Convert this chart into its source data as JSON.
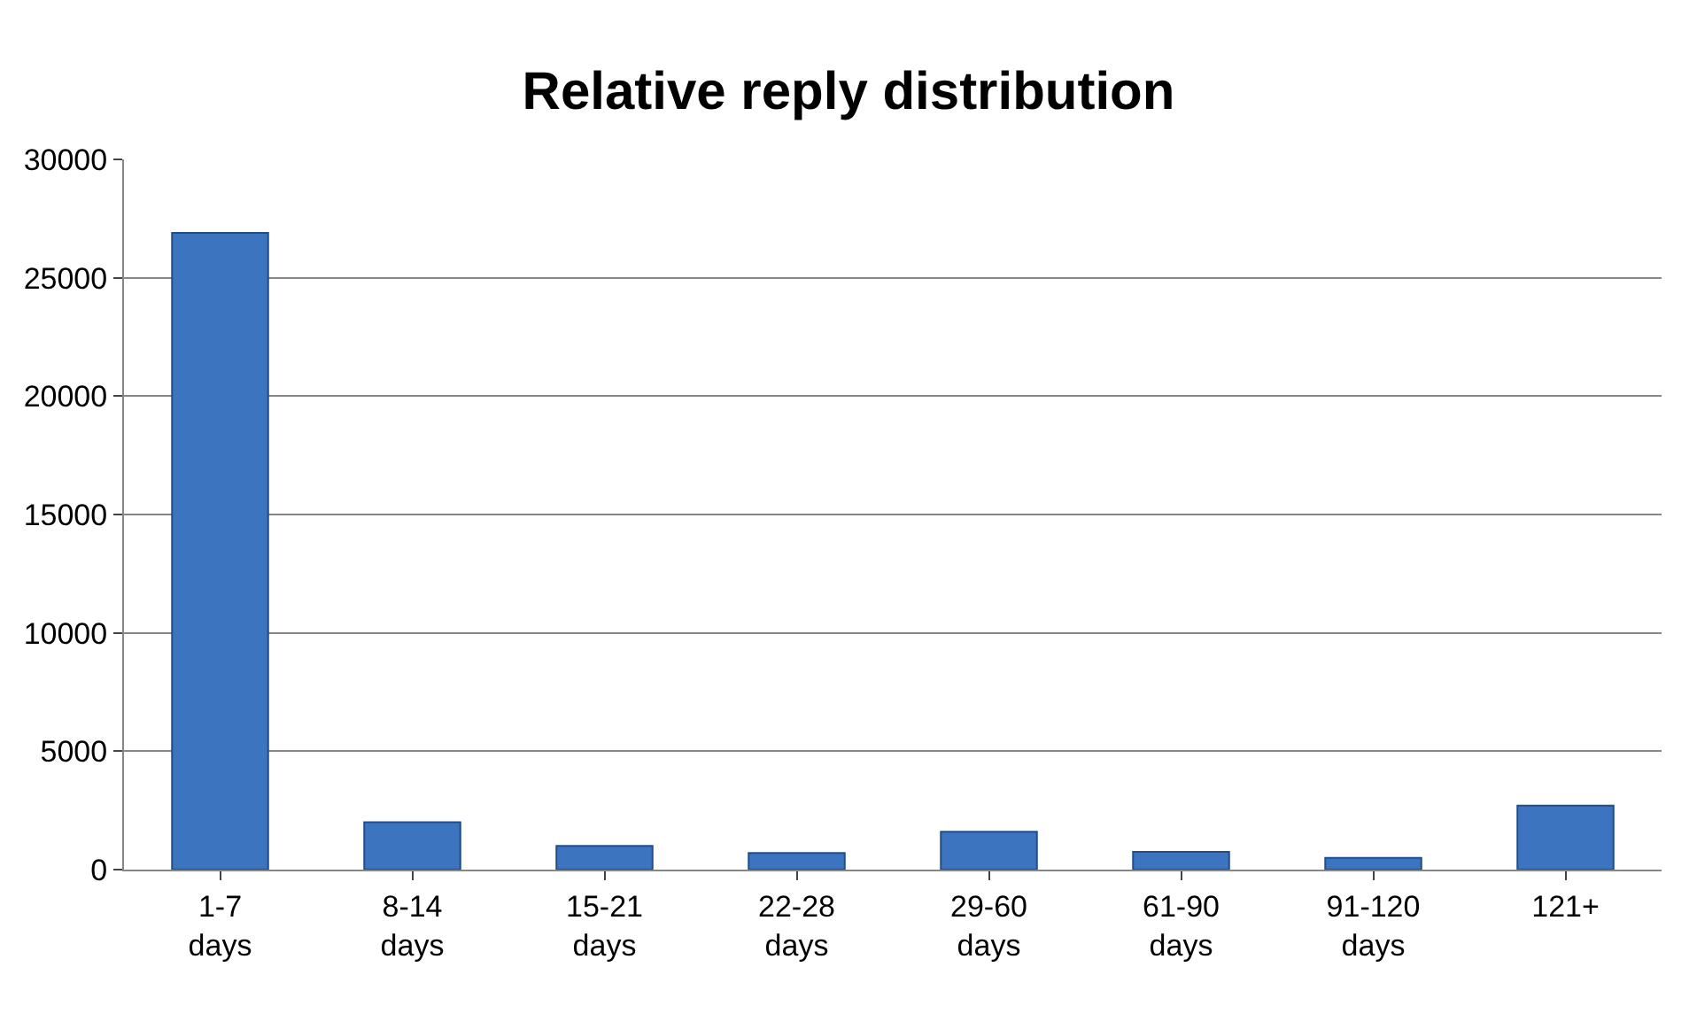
{
  "chart_data": {
    "type": "bar",
    "title": "Relative reply distribution",
    "categories": [
      "1-7 days",
      "8-14 days",
      "15-21 days",
      "22-28 days",
      "29-60 days",
      "61-90 days",
      "91-120 days",
      "121+"
    ],
    "values": [
      26900,
      2000,
      1000,
      700,
      1600,
      750,
      500,
      2700
    ],
    "color": "#3c74c0",
    "ylim": [
      0,
      30000
    ],
    "yticks": [
      0,
      5000,
      10000,
      15000,
      20000,
      25000,
      30000
    ],
    "grid": "y"
  }
}
